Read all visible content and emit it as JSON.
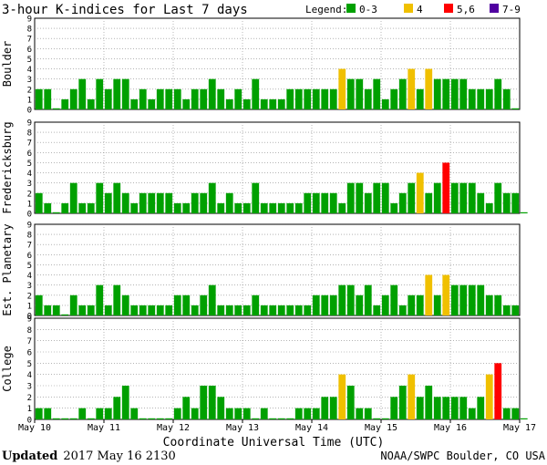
{
  "chart_data": {
    "type": "bar",
    "title": "3-hour K-indices for Last 7 days",
    "legend": {
      "label": "Legend:",
      "items": [
        {
          "label": "0-3",
          "color": "#00a000"
        },
        {
          "label": "4",
          "color": "#f0c000"
        },
        {
          "label": "5,6",
          "color": "#ff0000"
        },
        {
          "label": "7-9",
          "color": "#5000a0"
        }
      ]
    },
    "xlabel": "Coordinate Universal Time (UTC)",
    "x_ticks": [
      "May 10",
      "May 11",
      "May 12",
      "May 13",
      "May 14",
      "May 15",
      "May 16",
      "May 17"
    ],
    "ylim": [
      0,
      9
    ],
    "y_ticks": [
      "0",
      "1",
      "2",
      "3",
      "4",
      "5",
      "6",
      "7",
      "8",
      "9"
    ],
    "grid": true,
    "panels": [
      {
        "name": "Boulder",
        "values": [
          2,
          2,
          0,
          1,
          2,
          3,
          1,
          3,
          2,
          3,
          3,
          1,
          2,
          1,
          2,
          2,
          2,
          1,
          2,
          2,
          3,
          2,
          1,
          2,
          1,
          3,
          1,
          1,
          1,
          2,
          2,
          2,
          2,
          2,
          2,
          4,
          3,
          3,
          2,
          3,
          1,
          2,
          3,
          4,
          2,
          4,
          3,
          3,
          3,
          3,
          2,
          2,
          2,
          3,
          2,
          0
        ]
      },
      {
        "name": "Fredericksburg",
        "values": [
          2,
          1,
          0,
          1,
          3,
          1,
          1,
          3,
          2,
          3,
          2,
          1,
          2,
          2,
          2,
          2,
          1,
          1,
          2,
          2,
          3,
          1,
          2,
          1,
          1,
          3,
          1,
          1,
          1,
          1,
          1,
          2,
          2,
          2,
          2,
          1,
          3,
          3,
          2,
          3,
          3,
          1,
          2,
          3,
          4,
          2,
          3,
          5,
          3,
          3,
          3,
          2,
          1,
          3,
          2,
          2,
          0
        ]
      },
      {
        "name": "Est. Planetary",
        "values": [
          2,
          1,
          1,
          0,
          2,
          1,
          1,
          3,
          1,
          3,
          2,
          1,
          1,
          1,
          1,
          1,
          2,
          2,
          1,
          2,
          3,
          1,
          1,
          1,
          1,
          2,
          1,
          1,
          1,
          1,
          1,
          1,
          2,
          2,
          2,
          3,
          3,
          2,
          3,
          1,
          2,
          3,
          1,
          2,
          2,
          4,
          2,
          4,
          3,
          3,
          3,
          3,
          2,
          2,
          1,
          1
        ]
      },
      {
        "name": "College",
        "values": [
          1,
          1,
          0,
          0,
          0,
          1,
          0,
          1,
          1,
          2,
          3,
          1,
          0,
          0,
          0,
          0,
          1,
          2,
          1,
          3,
          3,
          2,
          1,
          1,
          1,
          0,
          1,
          0,
          0,
          0,
          1,
          1,
          1,
          2,
          2,
          4,
          3,
          1,
          1,
          0,
          0,
          2,
          3,
          4,
          2,
          3,
          2,
          2,
          2,
          2,
          1,
          2,
          4,
          5,
          1,
          1,
          0
        ]
      }
    ]
  },
  "footer": {
    "updated_label": "Updated",
    "updated_value": "2017 May 16 2130",
    "source": "NOAA/SWPC Boulder, CO USA"
  }
}
